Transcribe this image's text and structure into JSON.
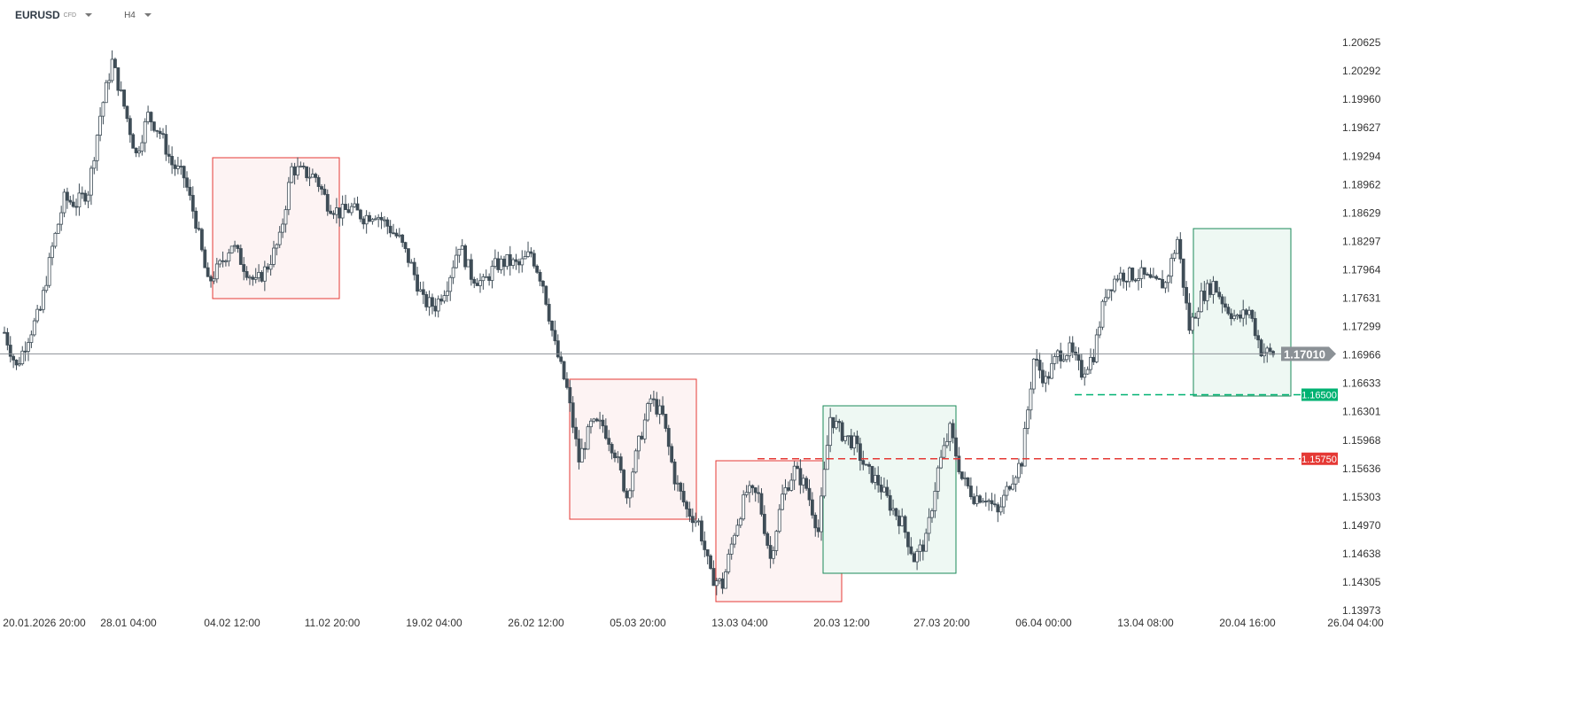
{
  "header": {
    "symbol": "EURUSD",
    "instrument_type": "CFD",
    "timeframe": "H4"
  },
  "colors": {
    "candle": "#3f4d57",
    "bull_fill": "#ffffff",
    "red_zone": "#e53935",
    "green_zone": "#1b8a5a",
    "green_label": "#00b272",
    "red_label": "#e53935",
    "price_label": "#8b9196"
  },
  "chart_data": {
    "type": "candlestick",
    "y_ticks": [
      "1.20625",
      "1.20292",
      "1.19960",
      "1.19627",
      "1.19294",
      "1.18962",
      "1.18629",
      "1.18297",
      "1.17964",
      "1.17631",
      "1.17299",
      "1.16966",
      "1.16633",
      "1.16301",
      "1.15968",
      "1.15636",
      "1.15303",
      "1.14970",
      "1.14638",
      "1.14305",
      "1.13973"
    ],
    "ylim": [
      1.13973,
      1.20625
    ],
    "x_ticks": [
      "20.01.2026 20:00",
      "28.01 04:00",
      "04.02 12:00",
      "11.02 20:00",
      "19.02 04:00",
      "26.02 12:00",
      "05.03 20:00",
      "13.03 04:00",
      "20.03 12:00",
      "27.03 20:00",
      "06.04 00:00",
      "13.04 08:00",
      "20.04 16:00",
      "26.04 04:00"
    ],
    "approx_close_path": [
      1.1723,
      1.1682,
      1.1718,
      1.1749,
      1.1822,
      1.1879,
      1.1874,
      1.1889,
      1.1977,
      1.204,
      1.1988,
      1.1931,
      1.1977,
      1.1957,
      1.192,
      1.1905,
      1.1853,
      1.178,
      1.1801,
      1.1827,
      1.1801,
      1.178,
      1.1801,
      1.1832,
      1.1915,
      1.191,
      1.1905,
      1.1874,
      1.1863,
      1.1868,
      1.1858,
      1.1863,
      1.1848,
      1.1832,
      1.1801,
      1.1759,
      1.1754,
      1.178,
      1.1827,
      1.179,
      1.178,
      1.1801,
      1.1806,
      1.1801,
      1.1816,
      1.178,
      1.1707,
      1.1656,
      1.1573,
      1.1614,
      1.1614,
      1.1583,
      1.1531,
      1.1593,
      1.1645,
      1.1624,
      1.1552,
      1.1515,
      1.15,
      1.1438,
      1.1427,
      1.149,
      1.1536,
      1.1531,
      1.1458,
      1.1531,
      1.1562,
      1.1541,
      1.149,
      1.1624,
      1.1604,
      1.1593,
      1.1562,
      1.1547,
      1.1521,
      1.15,
      1.1458,
      1.1479,
      1.1562,
      1.1609,
      1.1552,
      1.1531,
      1.1531,
      1.151,
      1.1547,
      1.1573,
      1.1692,
      1.1666,
      1.1697,
      1.1702,
      1.1676,
      1.1697,
      1.177,
      1.179,
      1.179,
      1.179,
      1.178,
      1.178,
      1.1832,
      1.1728,
      1.1765,
      1.178,
      1.1754,
      1.1738,
      1.1749,
      1.1702,
      1.1697
    ],
    "current_price": "1.17010",
    "levels": [
      {
        "price": "1.16500",
        "color": "green"
      },
      {
        "price": "1.15750",
        "color": "red"
      }
    ],
    "zones": [
      {
        "color": "red"
      },
      {
        "color": "red"
      },
      {
        "color": "red"
      },
      {
        "color": "green"
      },
      {
        "color": "green"
      }
    ]
  }
}
